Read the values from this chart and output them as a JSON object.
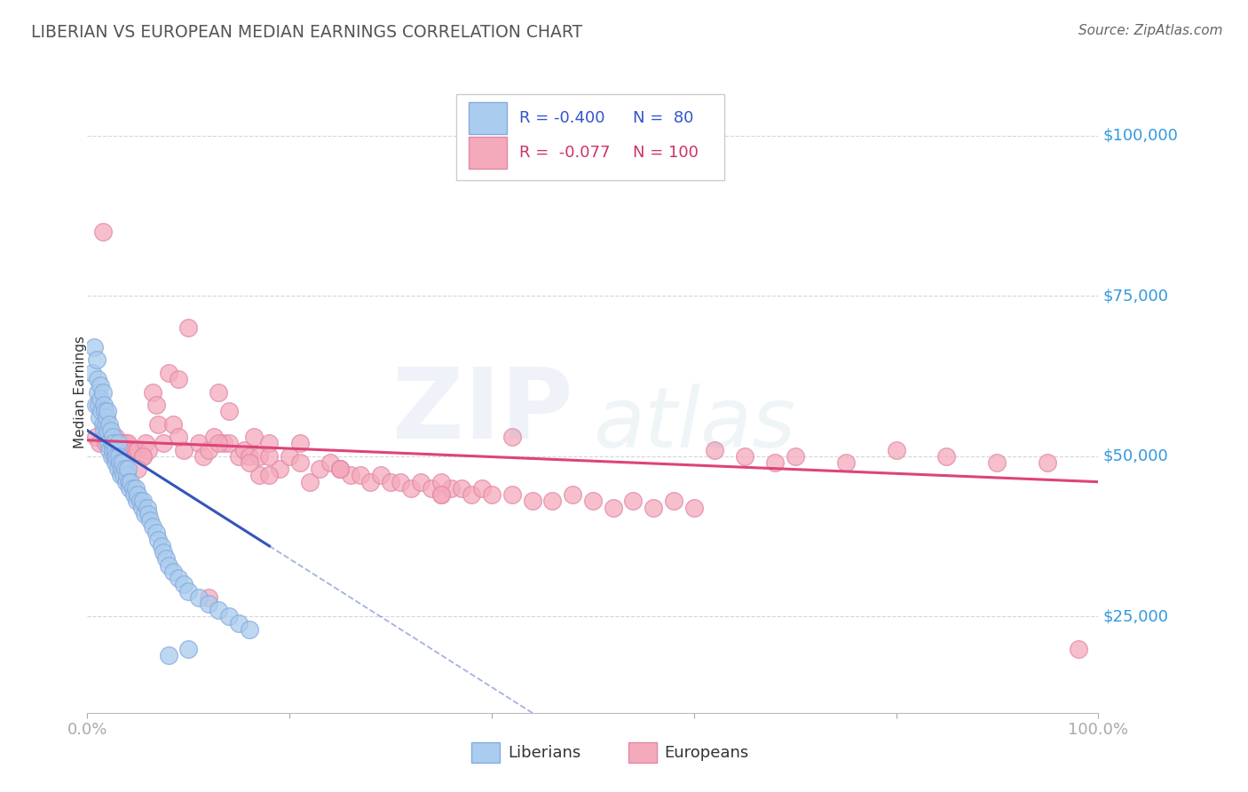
{
  "title": "LIBERIAN VS EUROPEAN MEDIAN EARNINGS CORRELATION CHART",
  "source": "Source: ZipAtlas.com",
  "ylabel": "Median Earnings",
  "xlim": [
    0,
    1.0
  ],
  "ylim": [
    10000,
    110000
  ],
  "bg_color": "#ffffff",
  "grid_color": "#cccccc",
  "liberian_color": "#aaccee",
  "european_color": "#f5aabb",
  "liberian_edge": "#88aadd",
  "european_edge": "#e088aa",
  "trend_blue": "#3355bb",
  "trend_pink": "#dd4477",
  "legend_R_blue": "R = -0.400",
  "legend_N_blue": "N =  80",
  "legend_R_pink": "R =  -0.077",
  "legend_N_pink": "N = 100",
  "liberian_x": [
    0.005,
    0.007,
    0.008,
    0.009,
    0.01,
    0.01,
    0.011,
    0.012,
    0.013,
    0.013,
    0.014,
    0.015,
    0.015,
    0.016,
    0.016,
    0.017,
    0.018,
    0.018,
    0.019,
    0.02,
    0.02,
    0.021,
    0.022,
    0.022,
    0.023,
    0.024,
    0.024,
    0.025,
    0.025,
    0.026,
    0.027,
    0.028,
    0.028,
    0.029,
    0.03,
    0.03,
    0.031,
    0.032,
    0.033,
    0.034,
    0.035,
    0.036,
    0.037,
    0.038,
    0.039,
    0.04,
    0.041,
    0.042,
    0.043,
    0.045,
    0.046,
    0.048,
    0.049,
    0.05,
    0.052,
    0.054,
    0.055,
    0.057,
    0.059,
    0.06,
    0.062,
    0.065,
    0.068,
    0.07,
    0.073,
    0.075,
    0.078,
    0.08,
    0.085,
    0.09,
    0.095,
    0.1,
    0.11,
    0.12,
    0.13,
    0.14,
    0.15,
    0.16,
    0.08,
    0.1
  ],
  "liberian_y": [
    63000,
    67000,
    58000,
    65000,
    62000,
    60000,
    58000,
    56000,
    61000,
    59000,
    57000,
    60000,
    55000,
    58000,
    54000,
    57000,
    55000,
    53000,
    56000,
    54000,
    57000,
    52000,
    55000,
    51000,
    54000,
    52000,
    50000,
    53000,
    51000,
    52000,
    50000,
    51000,
    49000,
    50000,
    52000,
    48000,
    50000,
    49000,
    47000,
    48000,
    49000,
    47000,
    48000,
    46000,
    47000,
    48000,
    46000,
    45000,
    46000,
    45000,
    44000,
    45000,
    43000,
    44000,
    43000,
    42000,
    43000,
    41000,
    42000,
    41000,
    40000,
    39000,
    38000,
    37000,
    36000,
    35000,
    34000,
    33000,
    32000,
    31000,
    30000,
    29000,
    28000,
    27000,
    26000,
    25000,
    24000,
    23000,
    19000,
    20000
  ],
  "european_x": [
    0.008,
    0.012,
    0.015,
    0.018,
    0.022,
    0.025,
    0.028,
    0.03,
    0.032,
    0.035,
    0.038,
    0.04,
    0.042,
    0.045,
    0.048,
    0.05,
    0.055,
    0.058,
    0.06,
    0.065,
    0.068,
    0.07,
    0.075,
    0.08,
    0.085,
    0.09,
    0.095,
    0.1,
    0.11,
    0.115,
    0.12,
    0.125,
    0.13,
    0.135,
    0.14,
    0.15,
    0.155,
    0.16,
    0.165,
    0.17,
    0.18,
    0.19,
    0.2,
    0.21,
    0.22,
    0.23,
    0.24,
    0.25,
    0.26,
    0.27,
    0.28,
    0.29,
    0.3,
    0.31,
    0.32,
    0.33,
    0.34,
    0.35,
    0.36,
    0.37,
    0.38,
    0.39,
    0.4,
    0.42,
    0.44,
    0.46,
    0.48,
    0.5,
    0.52,
    0.54,
    0.56,
    0.58,
    0.6,
    0.62,
    0.65,
    0.68,
    0.7,
    0.75,
    0.8,
    0.85,
    0.9,
    0.95,
    0.038,
    0.055,
    0.09,
    0.13,
    0.18,
    0.25,
    0.35,
    0.05,
    0.25,
    0.17,
    0.21,
    0.42,
    0.35,
    0.18,
    0.16,
    0.14,
    0.12,
    0.98
  ],
  "european_y": [
    53000,
    52000,
    85000,
    52000,
    54000,
    53000,
    53000,
    52000,
    52000,
    52000,
    52000,
    52000,
    51000,
    51000,
    51000,
    51000,
    50000,
    52000,
    51000,
    60000,
    58000,
    55000,
    52000,
    63000,
    55000,
    62000,
    51000,
    70000,
    52000,
    50000,
    51000,
    53000,
    60000,
    52000,
    52000,
    50000,
    51000,
    50000,
    53000,
    50000,
    52000,
    48000,
    50000,
    49000,
    46000,
    48000,
    49000,
    48000,
    47000,
    47000,
    46000,
    47000,
    46000,
    46000,
    45000,
    46000,
    45000,
    44000,
    45000,
    45000,
    44000,
    45000,
    44000,
    44000,
    43000,
    43000,
    44000,
    43000,
    42000,
    43000,
    42000,
    43000,
    42000,
    51000,
    50000,
    49000,
    50000,
    49000,
    51000,
    50000,
    49000,
    49000,
    47000,
    50000,
    53000,
    52000,
    50000,
    48000,
    46000,
    48000,
    48000,
    47000,
    52000,
    53000,
    44000,
    47000,
    49000,
    57000,
    28000,
    20000
  ]
}
